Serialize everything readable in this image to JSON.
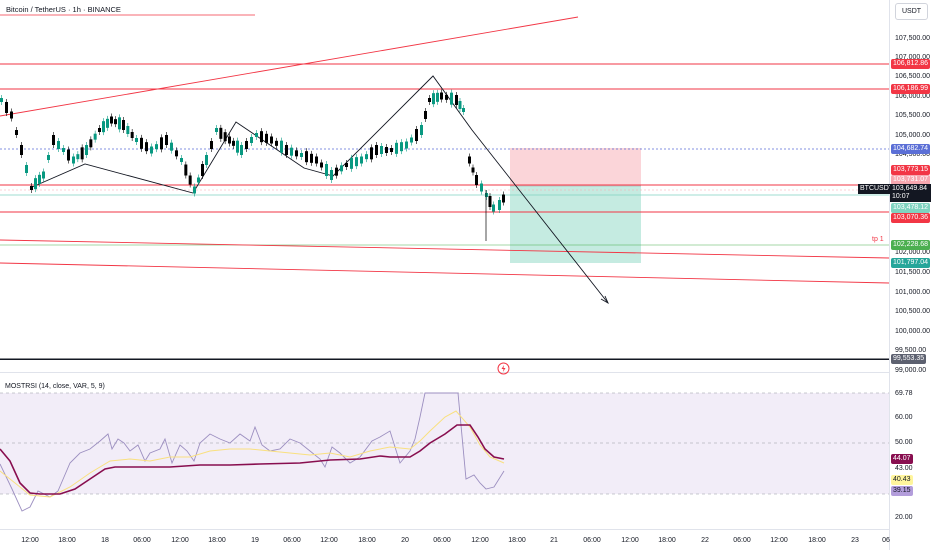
{
  "header": {
    "title": "Bitcoin / TetherUS · 1h · BINANCE",
    "currency": "USDT"
  },
  "main_chart": {
    "tp_label": "tp 1",
    "symbol_tag": "BTCUSDT",
    "last_price": "103,649.84",
    "countdown": "10:07"
  },
  "price_axis": {
    "labels": [
      "107,500.00",
      "107,000.00",
      "106,500.00",
      "106,000.00",
      "105,500.00",
      "105,000.00",
      "104,500.00",
      "102,000.00",
      "101,500.00",
      "101,000.00",
      "100,500.00",
      "100,000.00",
      "99,500.00",
      "99,000.00"
    ],
    "tags": [
      {
        "text": "106,812.86",
        "color": "#f23645"
      },
      {
        "text": "106,186.99",
        "color": "#f23645"
      },
      {
        "text": "104,682.74",
        "color": "#5b6fd6"
      },
      {
        "text": "103,773.15",
        "color": "#f23645"
      },
      {
        "text": "103,731.07",
        "color": "#f7a8b0"
      },
      {
        "text": "103,478.12",
        "color": "#7fd3c0"
      },
      {
        "text": "103,070.36",
        "color": "#f23645"
      },
      {
        "text": "102,228.68",
        "color": "#4caf50"
      },
      {
        "text": "101,797.04",
        "color": "#26a69a"
      },
      {
        "text": "99,553.35",
        "color": "#5d6170"
      }
    ]
  },
  "rsi": {
    "title": "MOSTRSI (14, close, VAR, 5, 9)",
    "axis_labels": [
      "69.78",
      "60.00",
      "50.00",
      "43.00",
      "20.00"
    ],
    "tags": [
      {
        "text": "44.07",
        "color": "#880e4f"
      },
      {
        "text": "40.43",
        "color": "#fff59d",
        "text_color": "#131722"
      },
      {
        "text": "39.15",
        "color": "#b39ddb"
      }
    ]
  },
  "time_axis": {
    "labels": [
      "12:00",
      "18:00",
      "18",
      "06:00",
      "12:00",
      "18:00",
      "19",
      "06:00",
      "12:00",
      "18:00",
      "20",
      "06:00",
      "12:00",
      "18:00",
      "21",
      "06:00",
      "12:00",
      "18:00",
      "22",
      "06:00",
      "12:00",
      "18:00",
      "23",
      "06"
    ]
  },
  "colors": {
    "bull": "#089981",
    "bear": "#000000",
    "resistance": "#f23645",
    "stop_zone": "#f8c8cd",
    "target_zone": "#b2e3d6"
  },
  "icons": {
    "replay": "lightning-circle-icon"
  }
}
